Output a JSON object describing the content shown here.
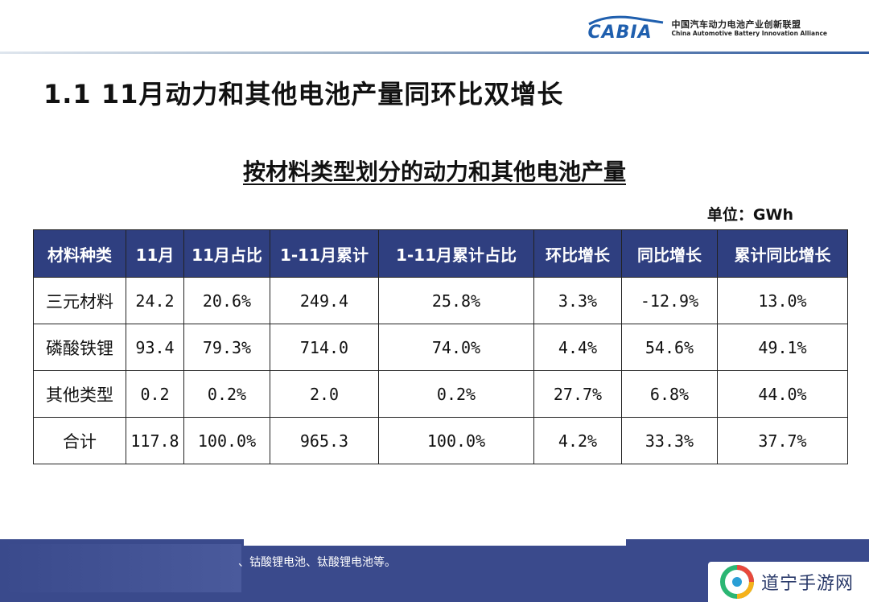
{
  "header": {
    "logo_word": "CABIA",
    "org_cn": "中国汽车动力电池产业创新联盟",
    "org_en": "China Automotive Battery Innovation Alliance"
  },
  "slide_title": "1.1  11月动力和其他电池产量同环比双增长",
  "table_title": "按材料类型划分的动力和其他电池产量",
  "unit_label": "单位：GWh",
  "table": {
    "columns": [
      "材料种类",
      "11月",
      "11月占比",
      "1-11月累计",
      "1-11月累计占比",
      "环比增长",
      "同比增长",
      "累计同比增长"
    ],
    "rows": [
      [
        "三元材料",
        "24.2",
        "20.6%",
        "249.4",
        "25.8%",
        "3.3%",
        "-12.9%",
        "13.0%"
      ],
      [
        "磷酸铁锂",
        "93.4",
        "79.3%",
        "714.0",
        "74.0%",
        "4.4%",
        "54.6%",
        "49.1%"
      ],
      [
        "其他类型",
        "0.2",
        "0.2%",
        "2.0",
        "0.2%",
        "27.7%",
        "6.8%",
        "44.0%"
      ],
      [
        "合计",
        "117.8",
        "100.0%",
        "965.3",
        "100.0%",
        "4.2%",
        "33.3%",
        "37.7%"
      ]
    ]
  },
  "footer_note": "、钴酸锂电池、钛酸锂电池等。",
  "watermark_text": "道宁手游网",
  "colors": {
    "table_header_bg": "#2f3f80",
    "footer_bg": "#3a4a8c",
    "logo_blue": "#1f5fae"
  }
}
